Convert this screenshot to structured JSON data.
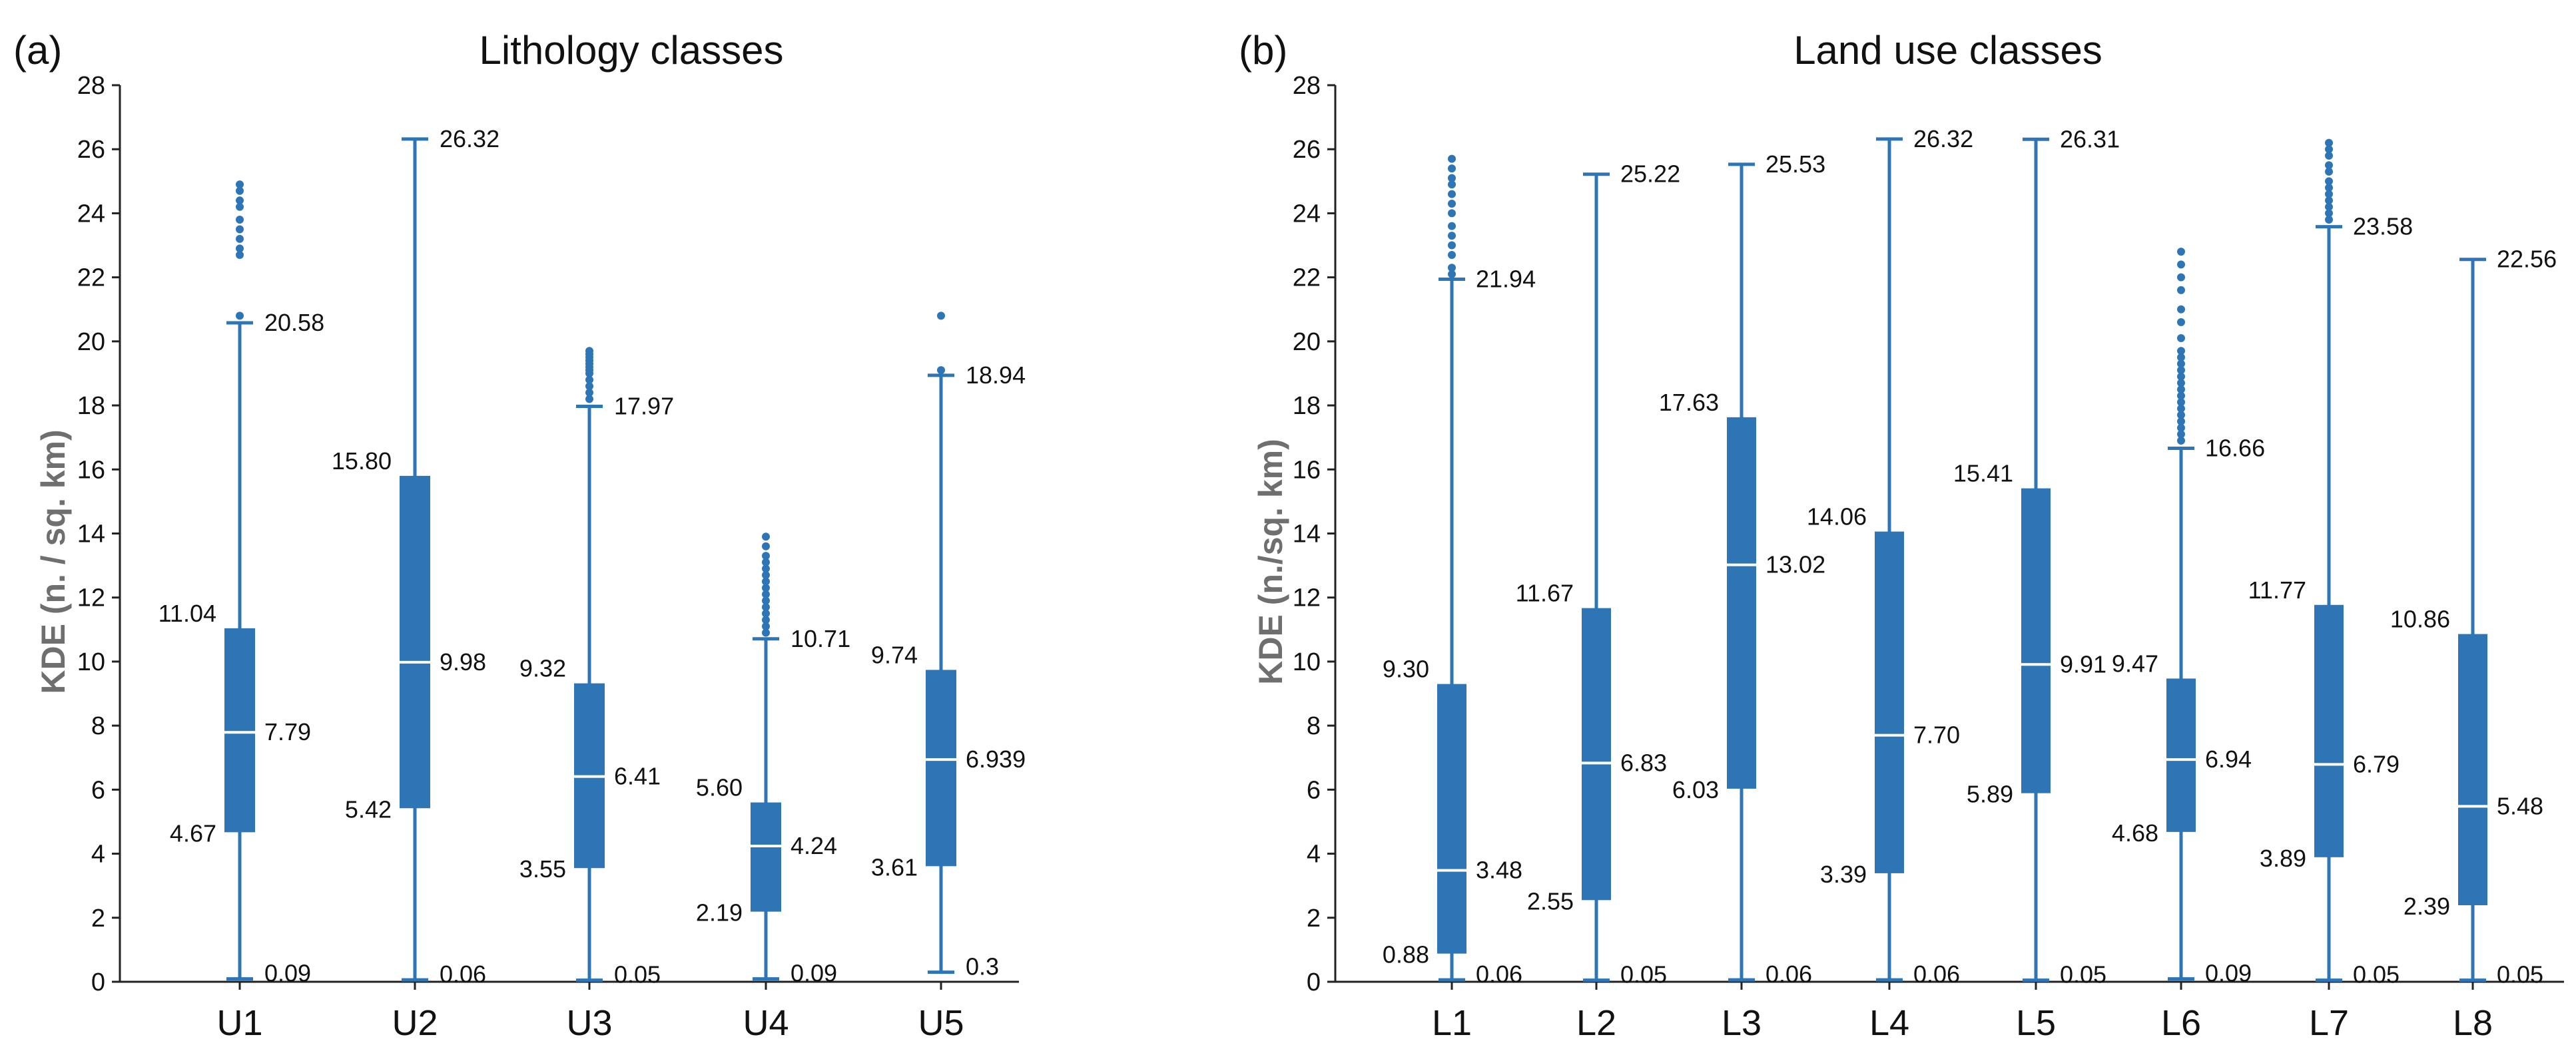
{
  "colors": {
    "box_fill": "#2E75B6",
    "median_line": "#ffffff",
    "axis": "#222222",
    "ylabel": "#6f6f6f"
  },
  "chart_data": [
    {
      "type": "box",
      "panel_label": "(a)",
      "title": "Lithology classes",
      "xlabel": "",
      "ylabel": "KDE (n. / sq. km)",
      "ylim": [
        0,
        28
      ],
      "yticks": [
        "0",
        "2",
        "4",
        "6",
        "8",
        "10",
        "12",
        "14",
        "16",
        "18",
        "20",
        "22",
        "24",
        "26",
        "28"
      ],
      "categories": [
        "U1",
        "U2",
        "U3",
        "U4",
        "U5"
      ],
      "boxes": [
        {
          "category": "U1",
          "min": 0.09,
          "q1": 4.67,
          "median": 7.79,
          "q3": 11.04,
          "max": 20.58,
          "labels": {
            "min": "0.09",
            "q1": "4.67",
            "median": "7.79",
            "q3": "11.04",
            "max": "20.58"
          },
          "outliers": [
            20.8,
            22.7,
            22.9,
            23.2,
            23.5,
            23.8,
            24.2,
            24.4,
            24.7,
            24.9
          ]
        },
        {
          "category": "U2",
          "min": 0.06,
          "q1": 5.42,
          "median": 9.98,
          "q3": 15.8,
          "max": 26.32,
          "labels": {
            "min": "0.06",
            "q1": "5.42",
            "median": "9.98",
            "q3": "15.80",
            "max": "26.32"
          },
          "outliers": []
        },
        {
          "category": "U3",
          "min": 0.05,
          "q1": 3.55,
          "median": 6.41,
          "q3": 9.32,
          "max": 17.97,
          "labels": {
            "min": "0.05",
            "q1": "3.55",
            "median": "6.41",
            "q3": "9.32",
            "max": "17.97"
          },
          "outliers": [
            18.2,
            18.4,
            18.6,
            18.8,
            19.0,
            19.1,
            19.2,
            19.3,
            19.4,
            19.5,
            19.6,
            19.7
          ]
        },
        {
          "category": "U4",
          "min": 0.09,
          "q1": 2.19,
          "median": 4.24,
          "q3": 5.6,
          "max": 10.71,
          "labels": {
            "min": "0.09",
            "q1": "2.19",
            "median": "4.24",
            "q3": "5.60",
            "max": "10.71"
          },
          "outliers": [
            10.9,
            11.1,
            11.3,
            11.5,
            11.7,
            11.9,
            12.1,
            12.3,
            12.5,
            12.7,
            12.9,
            13.1,
            13.3,
            13.6,
            13.9
          ]
        },
        {
          "category": "U5",
          "min": 0.3,
          "q1": 3.61,
          "median": 6.939,
          "q3": 9.74,
          "max": 18.94,
          "labels": {
            "min": "0.3",
            "q1": "3.61",
            "median": "6.939",
            "q3": "9.74",
            "max": "18.94"
          },
          "outliers": [
            19.1,
            20.8
          ]
        }
      ]
    },
    {
      "type": "box",
      "panel_label": "(b)",
      "title": "Land use classes",
      "xlabel": "",
      "ylabel": "KDE (n./sq. km)",
      "ylim": [
        0,
        28
      ],
      "yticks": [
        "0",
        "2",
        "4",
        "6",
        "8",
        "10",
        "12",
        "14",
        "16",
        "18",
        "20",
        "22",
        "24",
        "26",
        "28"
      ],
      "categories": [
        "L1",
        "L2",
        "L3",
        "L4",
        "L5",
        "L6",
        "L7",
        "L8"
      ],
      "boxes": [
        {
          "category": "L1",
          "min": 0.06,
          "q1": 0.88,
          "median": 3.48,
          "q3": 9.3,
          "max": 21.94,
          "labels": {
            "min": "0.06",
            "q1": "0.88",
            "median": "3.48",
            "q3": "9.30",
            "max": "21.94"
          },
          "outliers": [
            22.1,
            22.3,
            22.7,
            23.0,
            23.3,
            23.6,
            24.0,
            24.3,
            24.6,
            24.9,
            25.1,
            25.4,
            25.7
          ]
        },
        {
          "category": "L2",
          "min": 0.05,
          "q1": 2.55,
          "median": 6.83,
          "q3": 11.67,
          "max": 25.22,
          "labels": {
            "min": "0.05",
            "q1": "2.55",
            "median": "6.83",
            "q3": "11.67",
            "max": "25.22"
          },
          "outliers": []
        },
        {
          "category": "L3",
          "min": 0.06,
          "q1": 6.03,
          "median": 13.02,
          "q3": 17.63,
          "max": 25.53,
          "labels": {
            "min": "0.06",
            "q1": "6.03",
            "median": "13.02",
            "q3": "17.63",
            "max": "25.53"
          },
          "outliers": []
        },
        {
          "category": "L4",
          "min": 0.06,
          "q1": 3.39,
          "median": 7.7,
          "q3": 14.06,
          "max": 26.32,
          "labels": {
            "min": "0.06",
            "q1": "3.39",
            "median": "7.70",
            "q3": "14.06",
            "max": "26.32"
          },
          "outliers": []
        },
        {
          "category": "L5",
          "min": 0.05,
          "q1": 5.89,
          "median": 9.91,
          "q3": 15.41,
          "max": 26.31,
          "labels": {
            "min": "0.05",
            "q1": "5.89",
            "median": "9.91",
            "q3": "15.41",
            "max": "26.31"
          },
          "outliers": []
        },
        {
          "category": "L6",
          "min": 0.09,
          "q1": 4.68,
          "median": 6.94,
          "q3": 9.47,
          "max": 16.66,
          "labels": {
            "min": "0.09",
            "q1": "4.68",
            "median": "6.94",
            "q3": "9.47",
            "max": "16.66"
          },
          "outliers": [
            16.9,
            17.1,
            17.3,
            17.5,
            17.7,
            17.9,
            18.1,
            18.3,
            18.5,
            18.7,
            18.9,
            19.1,
            19.3,
            19.5,
            19.7,
            20.1,
            20.6,
            21.0,
            21.6,
            22.0,
            22.4,
            22.8
          ]
        },
        {
          "category": "L7",
          "min": 0.05,
          "q1": 3.89,
          "median": 6.79,
          "q3": 11.77,
          "max": 23.58,
          "labels": {
            "min": "0.05",
            "q1": "3.89",
            "median": "6.79",
            "q3": "11.77",
            "max": "23.58"
          },
          "outliers": [
            23.8,
            24.0,
            24.2,
            24.4,
            24.6,
            24.8,
            25.0,
            25.3,
            25.5,
            25.8,
            26.0,
            26.2
          ]
        },
        {
          "category": "L8",
          "min": 0.05,
          "q1": 2.39,
          "median": 5.48,
          "q3": 10.86,
          "max": 22.56,
          "labels": {
            "min": "0.05",
            "q1": "2.39",
            "median": "5.48",
            "q3": "10.86",
            "max": "22.56"
          },
          "outliers": []
        }
      ]
    }
  ]
}
